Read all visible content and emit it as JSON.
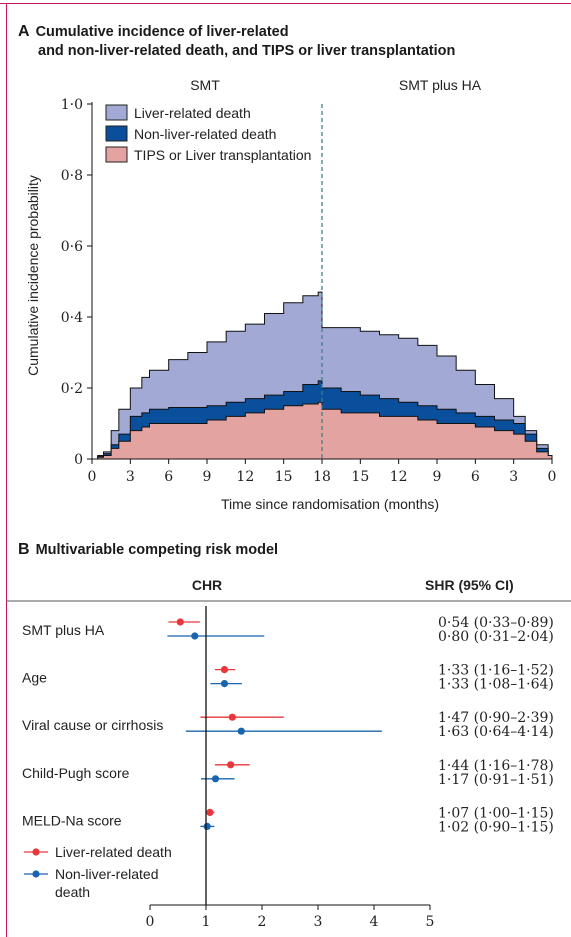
{
  "colors": {
    "frame": "#c0185a",
    "liver_related_death": "#a1a9d4",
    "non_liver_related_death": "#0a4f9c",
    "tips_or_transplant": "#e3a3a0",
    "forest_liver": "#e8363a",
    "forest_nonliver": "#1a64ad"
  },
  "panel_a": {
    "letter": "A",
    "title_line1": "Cumulative incidence of liver-related",
    "title_line2": "and non-liver-related death, and TIPS or liver transplantation",
    "group_left": "SMT",
    "group_right": "SMT plus HA"
  },
  "panel_b": {
    "letter": "B",
    "title": "Multivariable competing risk model",
    "col_chr": "CHR",
    "col_shr": "SHR (95% CI)"
  },
  "chart_data": [
    {
      "type": "area",
      "title": "Cumulative incidence of liver-related and non-liver-related death, and TIPS or liver transplantation",
      "xlabel": "Time since randomisation (months)",
      "ylabel": "Cumulative incidence probability",
      "x_tick_labels": [
        "0",
        "3",
        "6",
        "9",
        "12",
        "15",
        "18",
        "15",
        "12",
        "9",
        "6",
        "3",
        "0"
      ],
      "y_tick_labels": [
        "0",
        "0·2",
        "0·4",
        "0·6",
        "0·8",
        "1·0"
      ],
      "ylim": [
        0,
        1.0
      ],
      "x_positions": [
        0,
        1,
        2,
        3,
        4,
        5,
        6,
        7,
        8,
        9,
        10,
        11,
        12
      ],
      "divider_at": 6,
      "stacking": "cumulative",
      "legend": [
        "Liver-related death",
        "Non-liver-related death",
        "TIPS or Liver transplantation"
      ],
      "legend_position": "top-left",
      "series": [
        {
          "name": "TIPS or Liver transplantation",
          "color_key": "tips_or_transplant",
          "x": [
            0,
            0.15,
            0.3,
            0.5,
            0.7,
            1,
            1.3,
            1.5,
            2,
            2.5,
            3,
            3.5,
            4,
            4.5,
            5,
            5.5,
            5.9,
            6,
            6.5,
            7,
            7.5,
            8,
            8.5,
            9,
            9.5,
            10,
            10.5,
            11,
            11.3,
            11.6,
            11.9,
            12
          ],
          "y": [
            0,
            0.005,
            0.01,
            0.03,
            0.05,
            0.08,
            0.09,
            0.1,
            0.1,
            0.1,
            0.11,
            0.12,
            0.13,
            0.14,
            0.15,
            0.155,
            0.16,
            0.14,
            0.13,
            0.13,
            0.12,
            0.12,
            0.11,
            0.1,
            0.1,
            0.09,
            0.08,
            0.07,
            0.05,
            0.02,
            0.01,
            0
          ]
        },
        {
          "name": "Non-liver-related death",
          "color_key": "non_liver_related_death",
          "x": [
            0,
            0.15,
            0.3,
            0.5,
            0.7,
            1,
            1.3,
            1.5,
            2,
            2.5,
            3,
            3.5,
            4,
            4.5,
            5,
            5.5,
            5.9,
            6,
            6.5,
            7,
            7.5,
            8,
            8.5,
            9,
            9.5,
            10,
            10.5,
            11,
            11.3,
            11.6,
            11.9,
            12
          ],
          "y": [
            0,
            0.008,
            0.015,
            0.04,
            0.07,
            0.12,
            0.13,
            0.14,
            0.145,
            0.145,
            0.15,
            0.16,
            0.17,
            0.18,
            0.19,
            0.21,
            0.22,
            0.2,
            0.19,
            0.18,
            0.17,
            0.16,
            0.15,
            0.14,
            0.13,
            0.12,
            0.11,
            0.1,
            0.07,
            0.03,
            0.01,
            0
          ]
        },
        {
          "name": "Liver-related death",
          "color_key": "liver_related_death",
          "x": [
            0,
            0.15,
            0.3,
            0.5,
            0.7,
            1,
            1.3,
            1.5,
            2,
            2.5,
            3,
            3.5,
            4,
            4.5,
            5,
            5.5,
            5.9,
            6,
            6.5,
            7,
            7.5,
            8,
            8.5,
            9,
            9.5,
            10,
            10.5,
            11,
            11.3,
            11.6,
            11.9,
            12
          ],
          "y": [
            0,
            0.01,
            0.02,
            0.08,
            0.14,
            0.2,
            0.23,
            0.25,
            0.28,
            0.3,
            0.33,
            0.36,
            0.38,
            0.41,
            0.44,
            0.46,
            0.47,
            0.37,
            0.37,
            0.36,
            0.35,
            0.34,
            0.32,
            0.29,
            0.25,
            0.21,
            0.17,
            0.12,
            0.08,
            0.04,
            0.01,
            0
          ]
        }
      ]
    },
    {
      "type": "scatter",
      "subtype": "forest",
      "title": "Multivariable competing risk model",
      "xlim": [
        0,
        5
      ],
      "x_ticks": [
        0,
        1,
        2,
        3,
        4,
        5
      ],
      "reference_line": 1,
      "legend": [
        "Liver-related death",
        "Non-liver-related death"
      ],
      "legend_position": "bottom-left",
      "rows": [
        {
          "label": "SMT plus HA",
          "liver": {
            "est": 0.54,
            "lo": 0.33,
            "hi": 0.89,
            "text": "0·54 (0·33–0·89)"
          },
          "nonliver": {
            "est": 0.8,
            "lo": 0.31,
            "hi": 2.04,
            "text": "0·80 (0·31–2·04)"
          }
        },
        {
          "label": "Age",
          "liver": {
            "est": 1.33,
            "lo": 1.16,
            "hi": 1.52,
            "text": "1·33 (1·16–1·52)"
          },
          "nonliver": {
            "est": 1.33,
            "lo": 1.08,
            "hi": 1.64,
            "text": "1·33 (1·08–1·64)"
          }
        },
        {
          "label": "Viral cause or cirrhosis",
          "liver": {
            "est": 1.47,
            "lo": 0.9,
            "hi": 2.39,
            "text": "1·47 (0·90–2·39)"
          },
          "nonliver": {
            "est": 1.63,
            "lo": 0.64,
            "hi": 4.14,
            "text": "1·63 (0·64–4·14)"
          }
        },
        {
          "label": "Child-Pugh score",
          "liver": {
            "est": 1.44,
            "lo": 1.16,
            "hi": 1.78,
            "text": "1·44 (1·16–1·78)"
          },
          "nonliver": {
            "est": 1.17,
            "lo": 0.91,
            "hi": 1.51,
            "text": "1·17 (0·91–1·51)"
          }
        },
        {
          "label": "MELD-Na score",
          "liver": {
            "est": 1.07,
            "lo": 1.0,
            "hi": 1.15,
            "text": "1·07 (1·00–1·15)"
          },
          "nonliver": {
            "est": 1.02,
            "lo": 0.9,
            "hi": 1.15,
            "text": "1·02 (0·90–1·15)"
          }
        }
      ],
      "legend_entries": [
        {
          "label": "Liver-related death",
          "color_key": "forest_liver",
          "lines": [
            "Liver-related death"
          ]
        },
        {
          "label": "Non-liver-related death",
          "color_key": "forest_nonliver",
          "lines": [
            "Non-liver-related",
            "death"
          ]
        }
      ]
    }
  ]
}
